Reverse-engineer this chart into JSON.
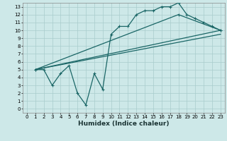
{
  "xlabel": "Humidex (Indice chaleur)",
  "ylabel": "",
  "xlim": [
    -0.5,
    23.5
  ],
  "ylim": [
    -0.5,
    13.5
  ],
  "xticks": [
    0,
    1,
    2,
    3,
    4,
    5,
    6,
    7,
    8,
    9,
    10,
    11,
    12,
    13,
    14,
    15,
    16,
    17,
    18,
    19,
    20,
    21,
    22,
    23
  ],
  "yticks": [
    0,
    1,
    2,
    3,
    4,
    5,
    6,
    7,
    8,
    9,
    10,
    11,
    12,
    13
  ],
  "bg_color": "#cde8e8",
  "grid_color": "#a8cccc",
  "line_color": "#1a6666",
  "line1_x": [
    1,
    2,
    3,
    4,
    5,
    6,
    7,
    8,
    9,
    10,
    11,
    12,
    13,
    14,
    15,
    16,
    17,
    18,
    19,
    20,
    21,
    22,
    23
  ],
  "line1_y": [
    5,
    5,
    3,
    4.5,
    5.5,
    2,
    0.5,
    4.5,
    2.5,
    9.5,
    10.5,
    10.5,
    12,
    12.5,
    12.5,
    13,
    13,
    13.5,
    12,
    11.5,
    11,
    10.5,
    10
  ],
  "line2_x": [
    1,
    23
  ],
  "line2_y": [
    5,
    10
  ],
  "line3_x": [
    1,
    23
  ],
  "line3_y": [
    5,
    9.5
  ],
  "line4_x": [
    1,
    18,
    23
  ],
  "line4_y": [
    5,
    12,
    10
  ],
  "tick_fontsize": 5.0,
  "xlabel_fontsize": 6.5,
  "marker_size": 3.0,
  "linewidth": 0.9
}
